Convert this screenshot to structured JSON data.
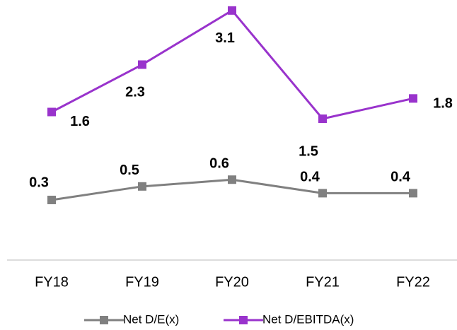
{
  "chart_data": {
    "type": "line",
    "categories": [
      "FY18",
      "FY19",
      "FY20",
      "FY21",
      "FY22"
    ],
    "series": [
      {
        "name": "Net D/E(x)",
        "values": [
          0.3,
          0.5,
          0.6,
          0.4,
          0.4
        ],
        "labels": [
          "0.3",
          "0.5",
          "0.6",
          "0.4",
          "0.4"
        ],
        "color": "#808080"
      },
      {
        "name": "Net D/EBITDA(x)",
        "values": [
          1.6,
          2.3,
          3.1,
          1.5,
          1.8
        ],
        "labels": [
          "1.6",
          "2.3",
          "3.1",
          "1.5",
          "1.8"
        ],
        "color": "#9933CC"
      }
    ],
    "title": "",
    "xlabel": "",
    "ylabel": "",
    "grid": false,
    "legend_position": "bottom"
  }
}
